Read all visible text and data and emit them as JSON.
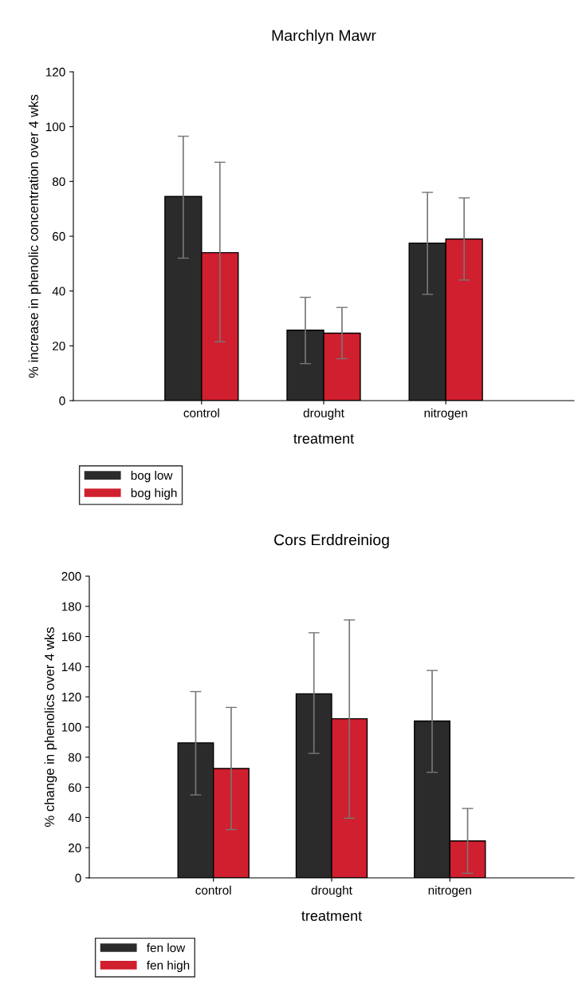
{
  "chart_data": [
    {
      "type": "bar",
      "title": "Marchlyn Mawr",
      "xlabel": "treatment",
      "ylabel": "% increase in phenolic concentration over 4 wks",
      "categories": [
        "control",
        "drought",
        "nitrogen"
      ],
      "series": [
        {
          "name": "bog low",
          "color": "#2b2b2b",
          "values": [
            74.5,
            25.7,
            57.5
          ],
          "errors": [
            [
              52,
              96.5
            ],
            [
              13.5,
              37.7
            ],
            [
              38.8,
              76
            ]
          ]
        },
        {
          "name": "bog high",
          "color": "#d01f2e",
          "values": [
            54,
            24.6,
            59
          ],
          "errors": [
            [
              21.5,
              87
            ],
            [
              15.3,
              34
            ],
            [
              44,
              74
            ]
          ]
        }
      ],
      "ylim": [
        0,
        120
      ],
      "yticks": [
        0,
        20,
        40,
        60,
        80,
        100,
        120
      ],
      "grid": false,
      "legend": "bottom left"
    },
    {
      "type": "bar",
      "title": "Cors Erddreiniog",
      "xlabel": "treatment",
      "ylabel": "% change in phenolics over 4 wks",
      "categories": [
        "control",
        "drought",
        "nitrogen"
      ],
      "series": [
        {
          "name": "fen low",
          "color": "#2b2b2b",
          "values": [
            89.5,
            122,
            104
          ],
          "errors": [
            [
              55,
              123.5
            ],
            [
              82.5,
              162.5
            ],
            [
              70,
              137.5
            ]
          ]
        },
        {
          "name": "fen high",
          "color": "#d01f2e",
          "values": [
            72.5,
            105.5,
            24.5
          ],
          "errors": [
            [
              32,
              113
            ],
            [
              39.5,
              171
            ],
            [
              3,
              46
            ]
          ]
        }
      ],
      "ylim": [
        0,
        200
      ],
      "yticks": [
        0,
        20,
        40,
        60,
        80,
        100,
        120,
        140,
        160,
        180,
        200
      ],
      "grid": false,
      "legend": "bottom left"
    }
  ]
}
